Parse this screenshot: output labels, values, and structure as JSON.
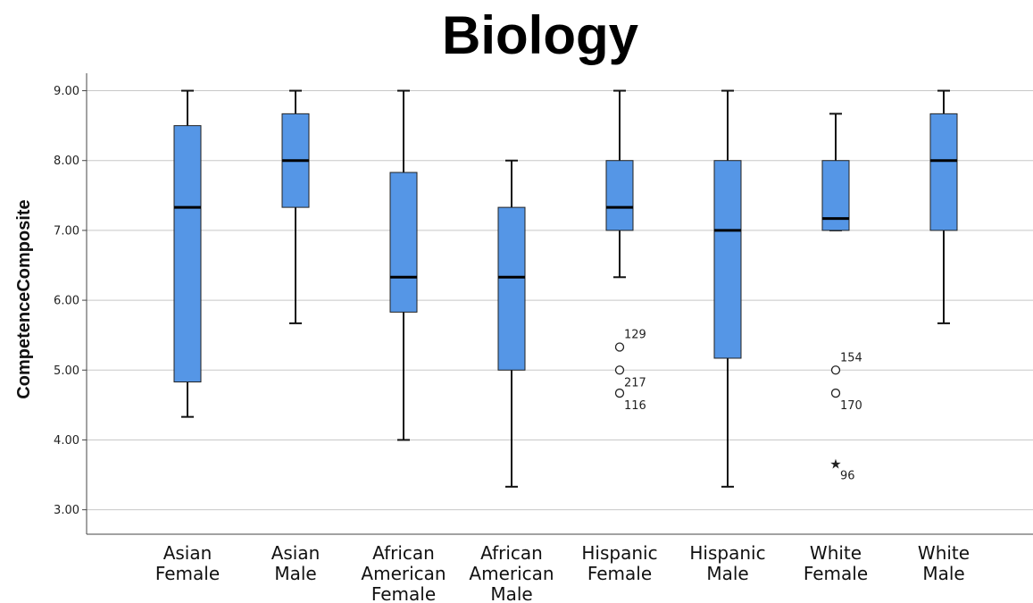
{
  "chart_data": {
    "type": "boxplot",
    "title": "Biology",
    "xlabel": "",
    "ylabel": "CompetenceComposite",
    "ylim": [
      2.65,
      9.25
    ],
    "yticks": [
      "3.00",
      "4.00",
      "5.00",
      "6.00",
      "7.00",
      "8.00",
      "9.00"
    ],
    "grid": "horizontal",
    "box_color": "#5596e6",
    "categories": [
      {
        "lines": [
          "Asian",
          "Female"
        ],
        "min": 4.33,
        "q1": 4.83,
        "median": 7.33,
        "q3": 8.5,
        "max": 9.0,
        "outliers": []
      },
      {
        "lines": [
          "Asian",
          "Male"
        ],
        "min": 5.67,
        "q1": 7.33,
        "median": 8.0,
        "q3": 8.67,
        "max": 9.0,
        "outliers": []
      },
      {
        "lines": [
          "African",
          "American",
          "Female"
        ],
        "min": 4.0,
        "q1": 5.83,
        "median": 6.33,
        "q3": 7.83,
        "max": 9.0,
        "outliers": []
      },
      {
        "lines": [
          "African",
          "American",
          "Male"
        ],
        "min": 3.33,
        "q1": 5.0,
        "median": 6.33,
        "q3": 7.33,
        "max": 8.0,
        "outliers": []
      },
      {
        "lines": [
          "Hispanic",
          "Female"
        ],
        "min": 6.33,
        "q1": 7.0,
        "median": 7.33,
        "q3": 8.0,
        "max": 9.0,
        "outliers": [
          {
            "value": 5.33,
            "label": "129",
            "symbol": "circle"
          },
          {
            "value": 5.0,
            "label": "217",
            "symbol": "circle"
          },
          {
            "value": 4.67,
            "label": "116",
            "symbol": "circle"
          }
        ]
      },
      {
        "lines": [
          "Hispanic",
          "Male"
        ],
        "min": 3.33,
        "q1": 5.17,
        "median": 7.0,
        "q3": 8.0,
        "max": 9.0,
        "outliers": []
      },
      {
        "lines": [
          "White",
          "Female"
        ],
        "min": 7.0,
        "q1": 7.0,
        "median": 7.17,
        "q3": 8.0,
        "max": 8.67,
        "outliers": [
          {
            "value": 5.0,
            "label": "154",
            "symbol": "circle"
          },
          {
            "value": 4.67,
            "label": "170",
            "symbol": "circle"
          },
          {
            "value": 3.67,
            "label": "96",
            "symbol": "star"
          }
        ]
      },
      {
        "lines": [
          "White",
          "Male"
        ],
        "min": 5.67,
        "q1": 7.0,
        "median": 8.0,
        "q3": 8.67,
        "max": 9.0,
        "outliers": []
      }
    ]
  }
}
